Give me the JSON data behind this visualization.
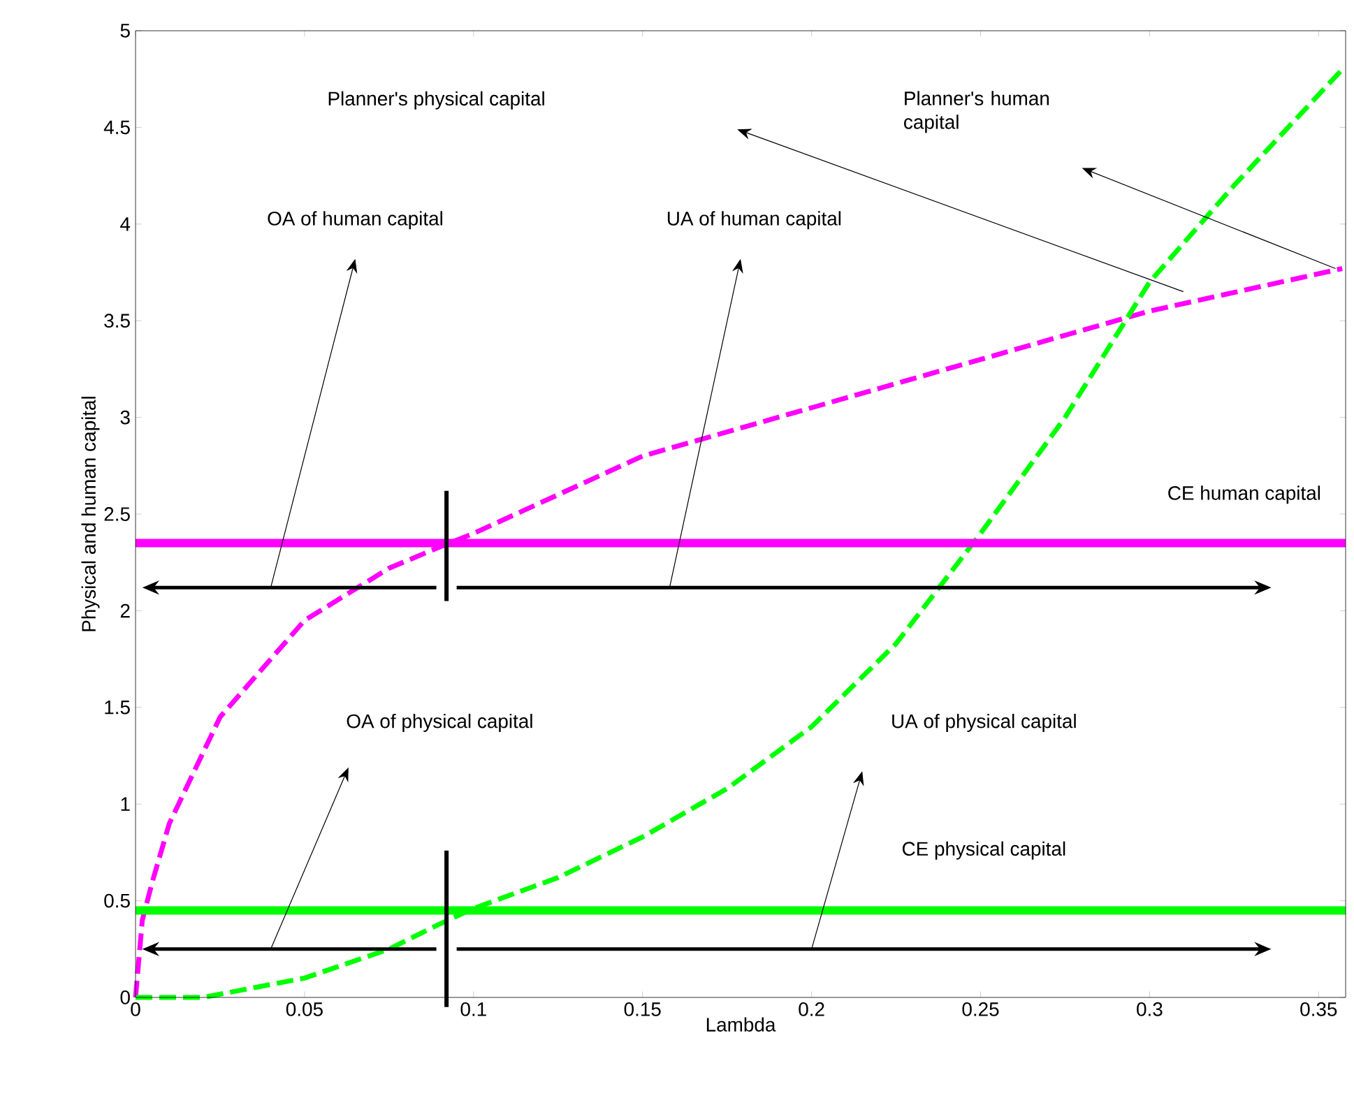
{
  "chart_data": {
    "type": "line",
    "xlabel": "Lambda",
    "ylabel": "Physical and human capital",
    "xlim": [
      0,
      0.358
    ],
    "ylim": [
      0,
      5
    ],
    "xticks": [
      0,
      0.05,
      0.1,
      0.15,
      0.2,
      0.25,
      0.3,
      0.35
    ],
    "yticks": [
      0,
      0.5,
      1,
      1.5,
      2,
      2.5,
      3,
      3.5,
      4,
      4.5,
      5
    ],
    "grid": false,
    "marker": "none",
    "series": [
      {
        "color": "#ff00ff",
        "line_style": "dashed",
        "x": [
          0,
          0.002,
          0.005,
          0.01,
          0.025,
          0.05,
          0.075,
          0.09,
          0.1,
          0.15,
          0.2,
          0.25,
          0.3,
          0.357
        ],
        "values": [
          0,
          0.4,
          0.6,
          0.9,
          1.45,
          1.95,
          2.22,
          2.33,
          2.4,
          2.8,
          3.05,
          3.3,
          3.55,
          3.77
        ]
      },
      {
        "color": "#00ff00",
        "line_style": "dashed",
        "x": [
          0,
          0.02,
          0.05,
          0.075,
          0.09,
          0.1,
          0.125,
          0.15,
          0.175,
          0.2,
          0.225,
          0.25,
          0.275,
          0.3,
          0.325,
          0.357
        ],
        "values": [
          0,
          0,
          0.1,
          0.25,
          0.38,
          0.46,
          0.62,
          0.83,
          1.08,
          1.4,
          1.83,
          2.4,
          3.0,
          3.7,
          4.2,
          4.8
        ]
      },
      {
        "color": "#ff00ff",
        "line_style": "solid",
        "x": [
          0,
          0.358
        ],
        "values": [
          2.35,
          2.35
        ]
      },
      {
        "color": "#00ff00",
        "line_style": "solid",
        "x": [
          0,
          0.358
        ],
        "values": [
          0.45,
          0.45
        ]
      }
    ],
    "ref_lines": [
      {
        "axis": "x",
        "value": 0.092,
        "color": "#000000"
      }
    ],
    "annotations": [
      "OA of human capital",
      "UA of human capital",
      "Planner's physical capital",
      "Planner's human capital",
      "CE human capital",
      "OA of physical capital",
      "UA of physical capital",
      "CE physical capital"
    ]
  }
}
